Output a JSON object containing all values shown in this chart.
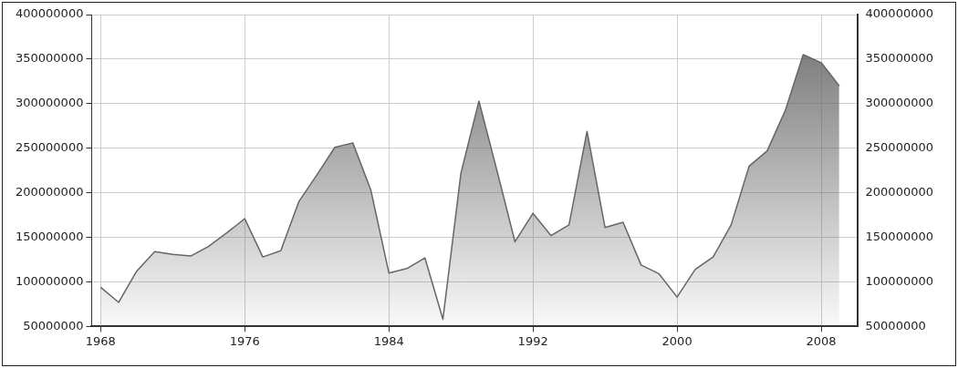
{
  "chart_data": {
    "type": "area",
    "x": [
      1968,
      1969,
      1970,
      1971,
      1972,
      1973,
      1974,
      1975,
      1976,
      1977,
      1978,
      1979,
      1980,
      1981,
      1982,
      1983,
      1984,
      1985,
      1986,
      1987,
      1988,
      1989,
      1990,
      1991,
      1992,
      1993,
      1994,
      1995,
      1996,
      1997,
      1998,
      1999,
      2000,
      2001,
      2002,
      2003,
      2004,
      2005,
      2006,
      2007,
      2008,
      2009
    ],
    "series": [
      {
        "color": "#666666",
        "values": [
          94000000,
          77000000,
          112000000,
          134000000,
          131000000,
          129000000,
          140000000,
          155000000,
          171000000,
          128000000,
          135000000,
          190000000,
          220000000,
          251000000,
          256000000,
          203000000,
          110000000,
          115000000,
          127000000,
          58000000,
          222000000,
          303000000,
          225000000,
          145000000,
          177000000,
          152000000,
          164000000,
          269000000,
          161000000,
          167000000,
          119000000,
          109000000,
          83000000,
          114000000,
          128000000,
          164000000,
          230000000,
          247000000,
          292000000,
          355000000,
          346000000,
          320000000
        ]
      }
    ],
    "xlim": [
      1967.5,
      2010
    ],
    "xticks": [
      1968,
      1976,
      1984,
      1992,
      2000,
      2008
    ],
    "ylim": [
      50000000,
      400000000
    ],
    "yticks": [
      50000000,
      100000000,
      150000000,
      200000000,
      250000000,
      300000000,
      350000000,
      400000000
    ],
    "y2lim": [
      50000000,
      400000000
    ],
    "y2ticks": [
      50000000,
      100000000,
      150000000,
      200000000,
      250000000,
      300000000,
      350000000,
      400000000
    ],
    "grid": true,
    "legend": false,
    "marker": "none",
    "line_style": "solid"
  }
}
